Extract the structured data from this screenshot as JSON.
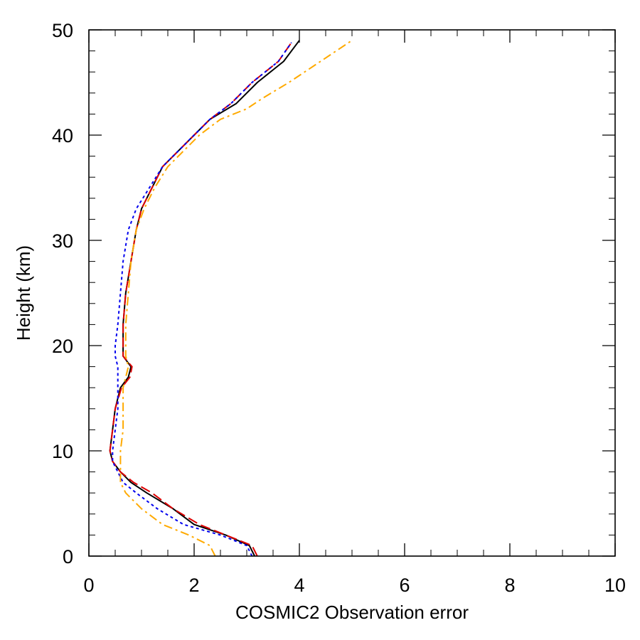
{
  "chart_data": {
    "type": "line",
    "title": "",
    "xlabel": "COSMIC2 Observation error",
    "ylabel": "Height (km)",
    "xlim": [
      0,
      10
    ],
    "ylim": [
      0,
      50
    ],
    "xticks": [
      0,
      2,
      4,
      6,
      8,
      10
    ],
    "yticks": [
      0,
      10,
      20,
      30,
      40,
      50
    ],
    "x_minor_step": 0.5,
    "y_minor_step": 2,
    "grid": false,
    "legend": "none",
    "series": [
      {
        "color": "#000000",
        "style": "solid",
        "points": [
          [
            3.15,
            0
          ],
          [
            3.05,
            1
          ],
          [
            2.6,
            2
          ],
          [
            2.0,
            3
          ],
          [
            1.6,
            4.5
          ],
          [
            1.1,
            6
          ],
          [
            0.8,
            7
          ],
          [
            0.6,
            8
          ],
          [
            0.45,
            9
          ],
          [
            0.4,
            10
          ],
          [
            0.45,
            12
          ],
          [
            0.5,
            14
          ],
          [
            0.6,
            16
          ],
          [
            0.75,
            17
          ],
          [
            0.8,
            18
          ],
          [
            0.65,
            19
          ],
          [
            0.65,
            20
          ],
          [
            0.65,
            22
          ],
          [
            0.7,
            25
          ],
          [
            0.8,
            28
          ],
          [
            0.9,
            31
          ],
          [
            1.0,
            33
          ],
          [
            1.2,
            35
          ],
          [
            1.4,
            37
          ],
          [
            1.7,
            38.5
          ],
          [
            2.0,
            40
          ],
          [
            2.3,
            41.5
          ],
          [
            2.8,
            43
          ],
          [
            3.2,
            45
          ],
          [
            3.7,
            47
          ],
          [
            4.0,
            49
          ]
        ]
      },
      {
        "color": "#dd0000",
        "style": "dashed",
        "points": [
          [
            3.2,
            0
          ],
          [
            3.1,
            1
          ],
          [
            2.6,
            2
          ],
          [
            2.1,
            3
          ],
          [
            1.6,
            4.5
          ],
          [
            1.2,
            6
          ],
          [
            0.85,
            7
          ],
          [
            0.6,
            8
          ],
          [
            0.45,
            9
          ],
          [
            0.4,
            10
          ],
          [
            0.45,
            12
          ],
          [
            0.5,
            14
          ],
          [
            0.62,
            16
          ],
          [
            0.78,
            17
          ],
          [
            0.82,
            18
          ],
          [
            0.65,
            19
          ],
          [
            0.65,
            20
          ],
          [
            0.65,
            22
          ],
          [
            0.7,
            25
          ],
          [
            0.8,
            28
          ],
          [
            0.9,
            31
          ],
          [
            1.0,
            33
          ],
          [
            1.2,
            35
          ],
          [
            1.4,
            37
          ],
          [
            1.7,
            38.5
          ],
          [
            2.0,
            40
          ],
          [
            2.3,
            41.5
          ],
          [
            2.7,
            43
          ],
          [
            3.1,
            45
          ],
          [
            3.6,
            47
          ],
          [
            3.85,
            48.8
          ]
        ]
      },
      {
        "color": "#0000ee",
        "style": "dotted",
        "points": [
          [
            3.1,
            0
          ],
          [
            3.0,
            1
          ],
          [
            2.5,
            2
          ],
          [
            1.8,
            3
          ],
          [
            1.3,
            4.5
          ],
          [
            0.9,
            6
          ],
          [
            0.65,
            7
          ],
          [
            0.55,
            8
          ],
          [
            0.45,
            9
          ],
          [
            0.45,
            10
          ],
          [
            0.5,
            12
          ],
          [
            0.55,
            14
          ],
          [
            0.55,
            16
          ],
          [
            0.55,
            17
          ],
          [
            0.55,
            18
          ],
          [
            0.5,
            19
          ],
          [
            0.5,
            20
          ],
          [
            0.55,
            22
          ],
          [
            0.6,
            25
          ],
          [
            0.65,
            28
          ],
          [
            0.75,
            31
          ],
          [
            0.9,
            33
          ],
          [
            1.15,
            35
          ],
          [
            1.4,
            37
          ],
          [
            1.7,
            38.5
          ],
          [
            2.0,
            40
          ],
          [
            2.3,
            41.5
          ],
          [
            2.7,
            43
          ],
          [
            3.1,
            45
          ],
          [
            3.6,
            47
          ],
          [
            3.85,
            48.8
          ]
        ]
      },
      {
        "color": "#ffaa00",
        "style": "dashdot",
        "points": [
          [
            2.4,
            0
          ],
          [
            2.3,
            1
          ],
          [
            1.9,
            2
          ],
          [
            1.4,
            3
          ],
          [
            1.0,
            4.5
          ],
          [
            0.7,
            6
          ],
          [
            0.6,
            7
          ],
          [
            0.6,
            8
          ],
          [
            0.6,
            9
          ],
          [
            0.6,
            10
          ],
          [
            0.65,
            12
          ],
          [
            0.65,
            14
          ],
          [
            0.65,
            16
          ],
          [
            0.7,
            17
          ],
          [
            0.75,
            18
          ],
          [
            0.7,
            19
          ],
          [
            0.7,
            20
          ],
          [
            0.7,
            22
          ],
          [
            0.75,
            25
          ],
          [
            0.8,
            28
          ],
          [
            0.9,
            31
          ],
          [
            1.05,
            33
          ],
          [
            1.25,
            35
          ],
          [
            1.5,
            37
          ],
          [
            1.8,
            38.5
          ],
          [
            2.1,
            40
          ],
          [
            2.5,
            41.5
          ],
          [
            3.0,
            42.5
          ],
          [
            3.3,
            43.5
          ],
          [
            3.8,
            45
          ],
          [
            4.4,
            47
          ],
          [
            5.0,
            49
          ]
        ]
      }
    ]
  }
}
